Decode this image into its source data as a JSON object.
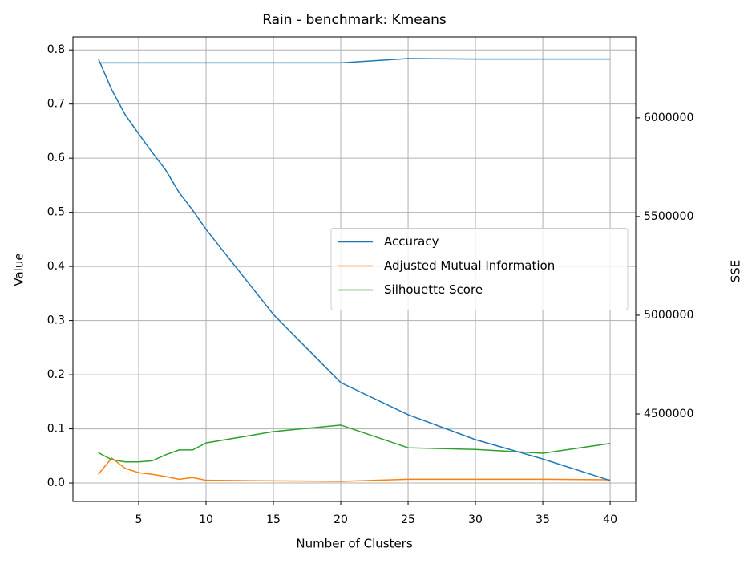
{
  "chart_data": {
    "type": "line",
    "title": "Rain - benchmark: Kmeans",
    "xlabel": "Number of Clusters",
    "ylabel": "Value",
    "y2label": "SSE",
    "x": [
      2,
      3,
      4,
      5,
      6,
      7,
      8,
      9,
      10,
      15,
      20,
      25,
      30,
      35,
      40
    ],
    "series": [
      {
        "name": "Accuracy",
        "color": "#1f77b4",
        "values": [
          0.776,
          0.776,
          0.776,
          0.776,
          0.776,
          0.776,
          0.776,
          0.776,
          0.776,
          0.776,
          0.776,
          0.784,
          0.783,
          0.783,
          0.783
        ]
      },
      {
        "name": "Adjusted Mutual Information",
        "color": "#ff7f0e",
        "values": [
          0.016,
          0.046,
          0.027,
          0.019,
          0.016,
          0.012,
          0.007,
          0.01,
          0.005,
          0.004,
          0.003,
          0.007,
          0.007,
          0.007,
          0.006
        ]
      },
      {
        "name": "Silhouette Score",
        "color": "#2ca02c",
        "values": [
          0.056,
          0.043,
          0.039,
          0.039,
          0.041,
          0.052,
          0.061,
          0.061,
          0.074,
          0.095,
          0.107,
          0.065,
          0.062,
          0.055,
          0.073
        ]
      },
      {
        "color": "#1f77b4",
        "axis": "y2",
        "values": [
          6300000,
          6142000,
          6016000,
          5919000,
          5825000,
          5736000,
          5622000,
          5533000,
          5435000,
          5004000,
          4659000,
          4496000,
          4370000,
          4272000,
          4163000
        ]
      }
    ],
    "xlim": [
      0.12,
      41.9
    ],
    "xticks": [
      5,
      10,
      15,
      20,
      25,
      30,
      35,
      40
    ],
    "ylim": [
      -0.034,
      0.824
    ],
    "yticks": [
      0.0,
      0.1,
      0.2,
      0.3,
      0.4,
      0.5,
      0.6,
      0.7,
      0.8
    ],
    "y2lim": [
      4057000,
      6410000
    ],
    "y2ticks": [
      4500000,
      5000000,
      5500000,
      6000000
    ],
    "grid": true,
    "legend": "center right"
  }
}
